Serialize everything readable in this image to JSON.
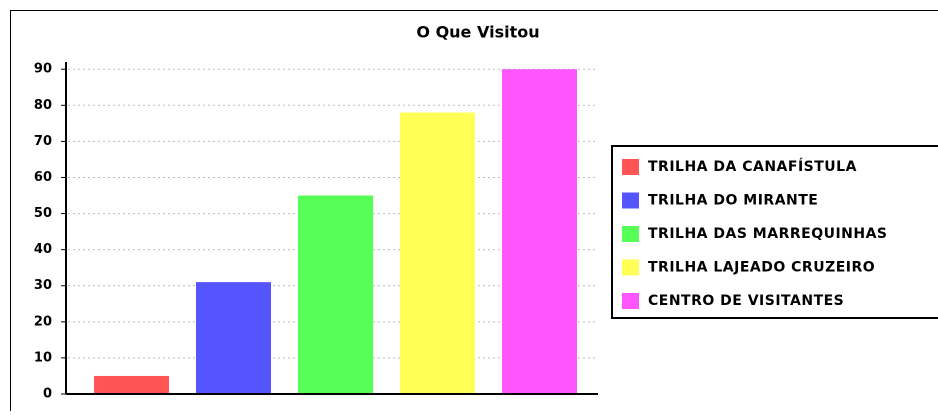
{
  "chart_data": {
    "type": "bar",
    "title": "O Que Visitou",
    "categories": [
      null
    ],
    "series": [
      {
        "name": "TRILHA DA CANAFÍSTULA",
        "color": "#ff5555",
        "values": [
          5
        ]
      },
      {
        "name": "TRILHA DO MIRANTE",
        "color": "#5555ff",
        "values": [
          31
        ]
      },
      {
        "name": "TRILHA DAS MARREQUINHAS",
        "color": "#55ff55",
        "values": [
          55
        ]
      },
      {
        "name": "TRILHA LAJEADO CRUZEIRO",
        "color": "#ffff55",
        "values": [
          78
        ]
      },
      {
        "name": "CENTRO DE VISITANTES",
        "color": "#ff55ff",
        "values": [
          90
        ]
      }
    ],
    "ylim": [
      0,
      92
    ],
    "yticks": [
      0,
      10,
      20,
      30,
      40,
      50,
      60,
      70,
      80,
      90
    ],
    "grid": true,
    "legend": "right"
  }
}
